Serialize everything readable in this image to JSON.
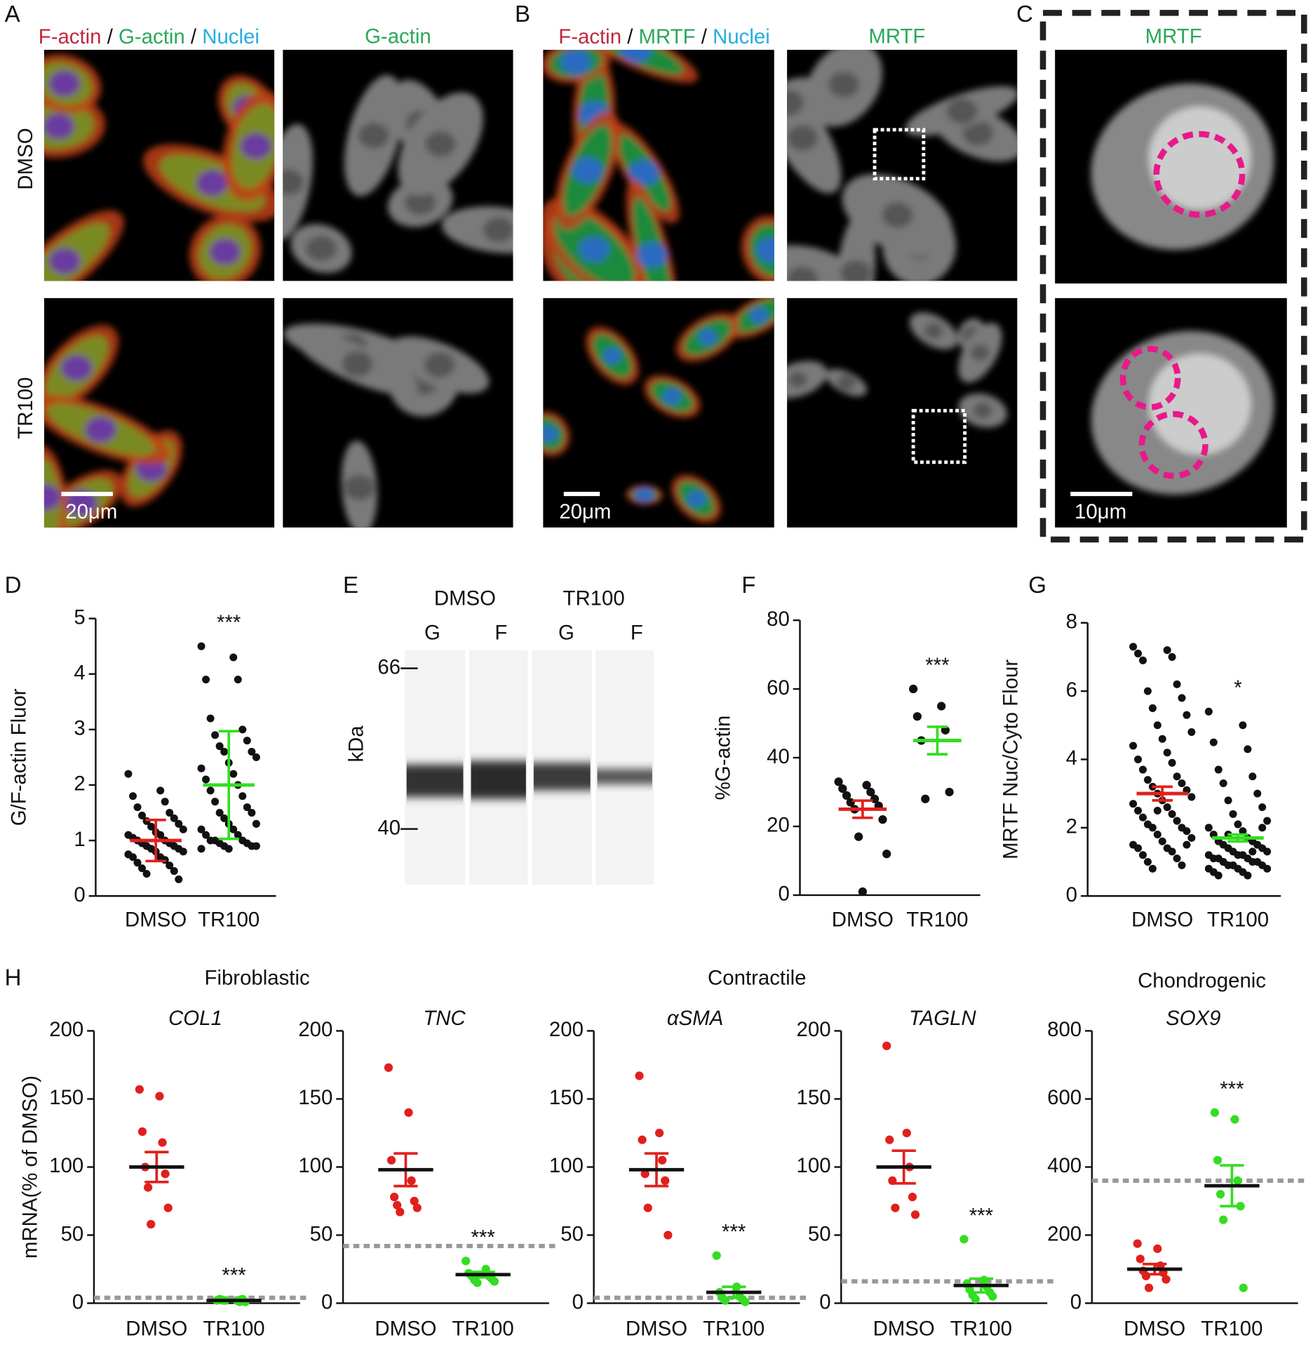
{
  "panel_letters": [
    "A",
    "B",
    "C",
    "D",
    "E",
    "F",
    "G",
    "H"
  ],
  "image_labels": {
    "a_merge": [
      "F-actin",
      "/",
      "G-actin",
      "/",
      "Nuclei"
    ],
    "a_gray": "G-actin",
    "b_merge": [
      "F-actin",
      "/",
      "MRTF",
      "/",
      "Nuclei"
    ],
    "b_gray": "MRTF",
    "c": "MRTF",
    "rows": [
      "DMSO",
      "TR100"
    ],
    "scale_bars": [
      "20μm",
      "20μm",
      "10μm"
    ]
  },
  "gel": {
    "groups": [
      "DMSO",
      "TR100"
    ],
    "lanes": [
      "G",
      "F",
      "G",
      "F"
    ],
    "unit": "kDa",
    "markers": [
      "66",
      "40"
    ]
  },
  "h_groups": [
    "Fibroblastic",
    "Contractile",
    "Chondrogenic"
  ],
  "chart_data": [
    {
      "type": "dotplot",
      "ylabel": "G/F-actin Fluor",
      "categories": [
        "DMSO",
        "TR100"
      ],
      "ylim": [
        0,
        5
      ],
      "yticks": [
        0,
        1,
        2,
        3,
        4,
        5
      ],
      "annotation": "***",
      "groups": [
        {
          "color": "#111111",
          "mean_color": "#e0201c",
          "mean": 1.0,
          "error": 0.37,
          "values": [
            2.2,
            1.9,
            1.8,
            1.7,
            1.6,
            1.5,
            1.45,
            1.4,
            1.35,
            1.3,
            1.25,
            1.2,
            1.15,
            1.1,
            1.1,
            1.05,
            1.0,
            1.0,
            0.95,
            0.95,
            0.9,
            0.9,
            0.85,
            0.85,
            0.8,
            0.8,
            0.75,
            0.7,
            0.7,
            0.65,
            0.6,
            0.55,
            0.5,
            0.45,
            0.4,
            0.3
          ]
        },
        {
          "color": "#111111",
          "mean_color": "#33dd22",
          "mean": 2.0,
          "error": 0.97,
          "values": [
            4.5,
            4.3,
            3.9,
            3.9,
            3.2,
            3.0,
            2.9,
            2.8,
            2.7,
            2.6,
            2.6,
            2.5,
            2.4,
            2.3,
            2.2,
            2.1,
            2.0,
            1.9,
            1.8,
            1.7,
            1.6,
            1.5,
            1.5,
            1.4,
            1.3,
            1.3,
            1.2,
            1.2,
            1.1,
            1.1,
            1.0,
            1.0,
            1.0,
            0.95,
            0.95,
            0.9,
            0.9,
            0.9,
            0.85,
            0.85
          ]
        }
      ]
    },
    {
      "type": "dotplot",
      "ylabel": "%G-actin",
      "categories": [
        "DMSO",
        "TR100"
      ],
      "ylim": [
        0,
        80
      ],
      "yticks": [
        0,
        20,
        40,
        60,
        80
      ],
      "annotation": "***",
      "groups": [
        {
          "color": "#111111",
          "mean_color": "#e0201c",
          "mean": 25,
          "error": 2.5,
          "values": [
            33,
            32,
            31,
            30,
            29,
            28,
            27,
            26,
            25,
            22,
            17,
            12,
            1
          ]
        },
        {
          "color": "#111111",
          "mean_color": "#33dd22",
          "mean": 45,
          "error": 4,
          "values": [
            60,
            55,
            52,
            48,
            45,
            30,
            28
          ]
        }
      ]
    },
    {
      "type": "dotplot",
      "ylabel": "MRTF Nuc/Cyto Flour",
      "categories": [
        "DMSO",
        "TR100"
      ],
      "ylim": [
        0,
        8
      ],
      "yticks": [
        0,
        2,
        4,
        6,
        8
      ],
      "annotation": "*",
      "groups": [
        {
          "color": "#111111",
          "mean_color": "#e0201c",
          "mean": 3.0,
          "error": 0.2,
          "values": [
            7.3,
            7.2,
            7.1,
            7.0,
            6.9,
            6.2,
            6.0,
            5.8,
            5.5,
            5.3,
            5.0,
            4.8,
            4.6,
            4.4,
            4.2,
            4.0,
            3.9,
            3.7,
            3.5,
            3.4,
            3.3,
            3.2,
            3.1,
            3.0,
            2.9,
            2.8,
            2.7,
            2.6,
            2.5,
            2.4,
            2.3,
            2.2,
            2.1,
            2.0,
            2.0,
            1.9,
            1.8,
            1.7,
            1.6,
            1.5,
            1.4,
            1.4,
            1.3,
            1.2,
            1.1,
            1.0,
            0.9,
            0.8,
            1.5,
            2.5
          ]
        },
        {
          "color": "#111111",
          "mean_color": "#33dd22",
          "mean": 1.7,
          "error": 0.1,
          "values": [
            5.4,
            5.0,
            4.5,
            4.3,
            3.7,
            3.5,
            3.3,
            3.0,
            2.8,
            2.6,
            2.4,
            2.2,
            2.1,
            2.0,
            1.9,
            1.8,
            1.7,
            1.6,
            1.6,
            1.5,
            1.5,
            1.4,
            1.4,
            1.3,
            1.3,
            1.2,
            1.2,
            1.2,
            1.1,
            1.1,
            1.1,
            1.0,
            1.0,
            1.0,
            0.9,
            0.9,
            0.9,
            0.8,
            0.8,
            0.8,
            0.7,
            0.7,
            0.6,
            0.6,
            1.3,
            1.0,
            1.5,
            1.8,
            2.0,
            0.9
          ]
        }
      ]
    },
    {
      "type": "dotplot",
      "title": "COL1",
      "ylabel": "mRNA(% of DMSO)",
      "categories": [
        "DMSO",
        "TR100"
      ],
      "ylim": [
        0,
        200
      ],
      "yticks": [
        0,
        50,
        100,
        150,
        200
      ],
      "annotation": "***",
      "reference": 4,
      "groups": [
        {
          "color": "#e0201c",
          "mean_color": "#111111",
          "error_color": "#e0201c",
          "mean": 100,
          "error": 11,
          "values": [
            157,
            152,
            126,
            118,
            100,
            95,
            85,
            70,
            58
          ]
        },
        {
          "color": "#33dd22",
          "mean_color": "#111111",
          "error_color": "#33dd22",
          "mean": 2,
          "error": 0.5,
          "values": [
            2,
            2,
            3,
            1,
            2,
            3,
            2,
            1
          ]
        }
      ]
    },
    {
      "type": "dotplot",
      "title": "TNC",
      "categories": [
        "DMSO",
        "TR100"
      ],
      "ylim": [
        0,
        200
      ],
      "yticks": [
        0,
        50,
        100,
        150,
        200
      ],
      "annotation": "***",
      "reference": 42,
      "groups": [
        {
          "color": "#e0201c",
          "mean_color": "#111111",
          "error_color": "#e0201c",
          "mean": 98,
          "error": 12,
          "values": [
            173,
            140,
            105,
            90,
            78,
            75,
            72,
            70,
            67
          ]
        },
        {
          "color": "#33dd22",
          "mean_color": "#111111",
          "error_color": "#33dd22",
          "mean": 21,
          "error": 2,
          "values": [
            31,
            25,
            22,
            20,
            20,
            18,
            17,
            16,
            15
          ]
        }
      ]
    },
    {
      "type": "dotplot",
      "title": "αSMA",
      "categories": [
        "DMSO",
        "TR100"
      ],
      "ylim": [
        0,
        200
      ],
      "yticks": [
        0,
        50,
        100,
        150,
        200
      ],
      "annotation": "***",
      "reference": 4,
      "groups": [
        {
          "color": "#e0201c",
          "mean_color": "#111111",
          "error_color": "#e0201c",
          "mean": 98,
          "error": 12,
          "values": [
            167,
            125,
            120,
            105,
            95,
            90,
            70,
            50
          ]
        },
        {
          "color": "#33dd22",
          "mean_color": "#111111",
          "error_color": "#33dd22",
          "mean": 8,
          "error": 4,
          "values": [
            35,
            12,
            8,
            5,
            4,
            3,
            2,
            1
          ]
        }
      ]
    },
    {
      "type": "dotplot",
      "title": "TAGLN",
      "categories": [
        "DMSO",
        "TR100"
      ],
      "ylim": [
        0,
        200
      ],
      "yticks": [
        0,
        50,
        100,
        150,
        200
      ],
      "annotation": "***",
      "reference": 16,
      "groups": [
        {
          "color": "#e0201c",
          "mean_color": "#111111",
          "error_color": "#e0201c",
          "mean": 100,
          "error": 12,
          "values": [
            189,
            125,
            120,
            100,
            90,
            78,
            70,
            65
          ]
        },
        {
          "color": "#33dd22",
          "mean_color": "#111111",
          "error_color": "#33dd22",
          "mean": 13,
          "error": 5,
          "values": [
            47,
            17,
            14,
            12,
            10,
            8,
            6,
            5,
            3
          ]
        }
      ]
    },
    {
      "type": "dotplot",
      "title": "SOX9",
      "categories": [
        "DMSO",
        "TR100"
      ],
      "ylim": [
        0,
        800
      ],
      "yticks": [
        0,
        200,
        400,
        600,
        800
      ],
      "annotation": "***",
      "reference": 360,
      "groups": [
        {
          "color": "#e0201c",
          "mean_color": "#111111",
          "error_color": "#e0201c",
          "mean": 100,
          "error": 15,
          "values": [
            175,
            160,
            130,
            110,
            95,
            90,
            80,
            70,
            45
          ]
        },
        {
          "color": "#33dd22",
          "mean_color": "#111111",
          "error_color": "#33dd22",
          "mean": 345,
          "error": 60,
          "values": [
            560,
            540,
            420,
            360,
            320,
            285,
            245,
            45
          ]
        }
      ]
    }
  ]
}
